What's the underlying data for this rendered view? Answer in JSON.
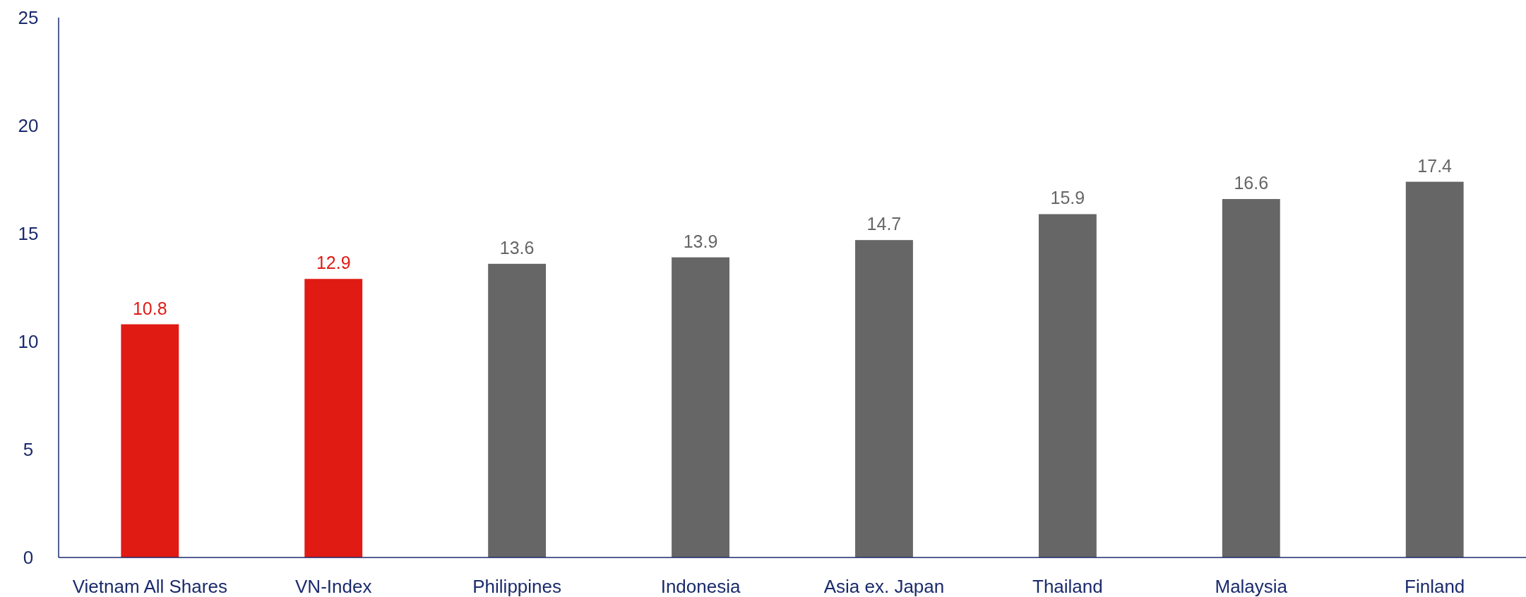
{
  "chart_data": {
    "type": "bar",
    "categories": [
      "Vietnam All Shares",
      "VN-Index",
      "Philippines",
      "Indonesia",
      "Asia ex. Japan",
      "Thailand",
      "Malaysia",
      "Finland"
    ],
    "values": [
      10.8,
      12.9,
      13.6,
      13.9,
      14.7,
      15.9,
      16.6,
      17.4
    ],
    "colors": [
      "#e01b14",
      "#e01b14",
      "#666666",
      "#666666",
      "#666666",
      "#666666",
      "#666666",
      "#666666"
    ],
    "ylim": [
      0,
      25
    ],
    "yticks": [
      0,
      5,
      10,
      15,
      20,
      25
    ],
    "data_labels": true,
    "grid": false
  }
}
